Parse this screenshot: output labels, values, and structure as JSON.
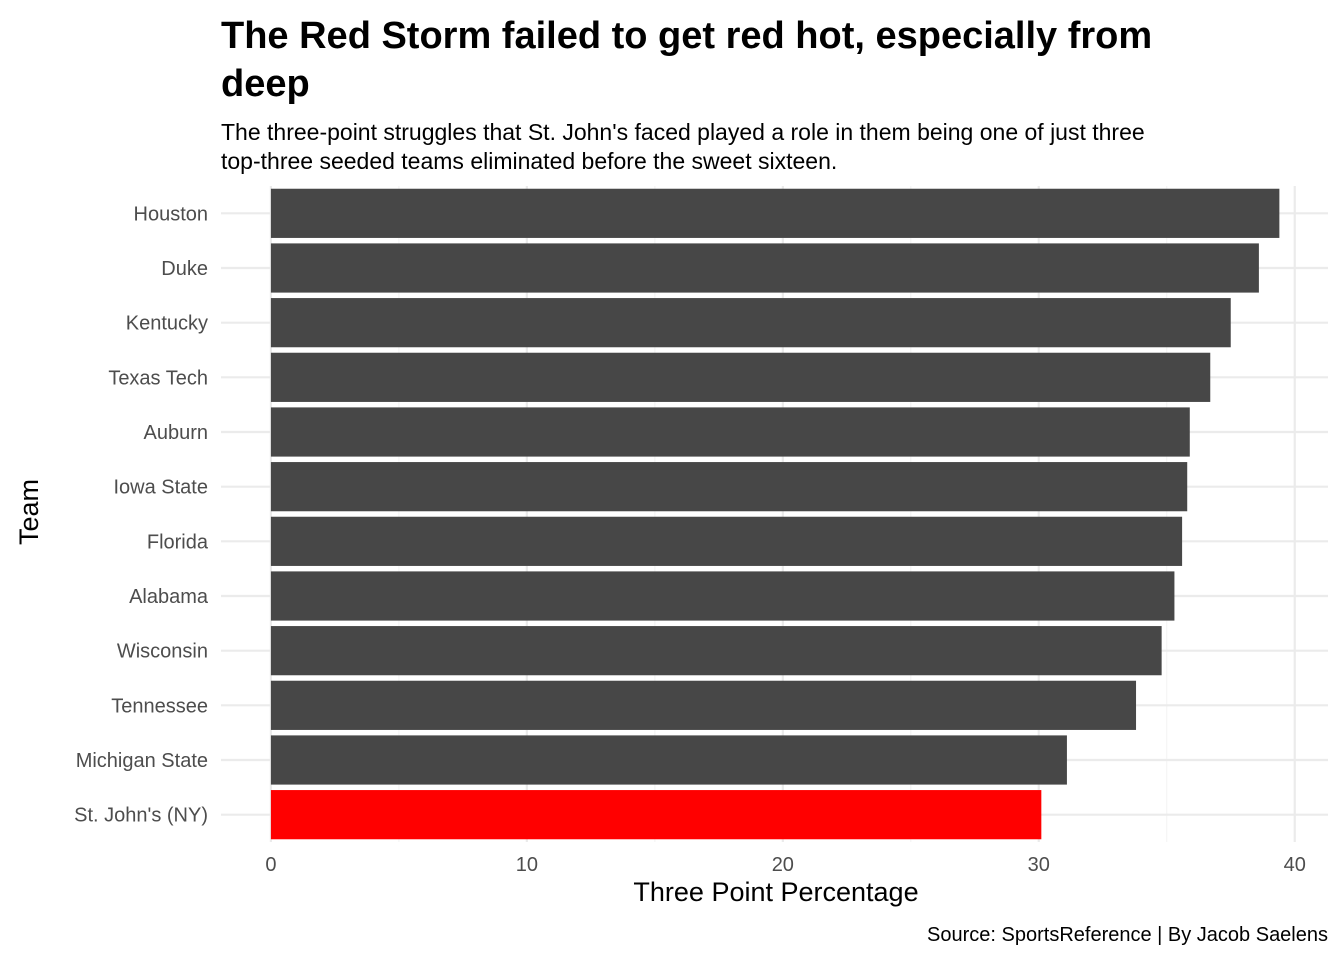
{
  "chart_data": {
    "type": "bar",
    "orientation": "horizontal",
    "title": "The Red Storm failed to get red hot, especially from deep",
    "title_lines": [
      "The Red Storm failed to get red hot, especially from",
      "deep"
    ],
    "subtitle_lines": [
      "The three-point struggles that St. John's faced played a role in them being one of just three",
      "top-three seeded teams eliminated before the sweet sixteen."
    ],
    "xlabel": "Three Point Percentage",
    "ylabel": "Team",
    "caption": "Source: SportsReference | By Jacob Saelens",
    "categories": [
      "Houston",
      "Duke",
      "Kentucky",
      "Texas Tech",
      "Auburn",
      "Iowa State",
      "Florida",
      "Alabama",
      "Wisconsin",
      "Tennessee",
      "Michigan State",
      "St. John's (NY)"
    ],
    "values": [
      39.4,
      38.6,
      37.5,
      36.7,
      35.9,
      35.8,
      35.6,
      35.3,
      34.8,
      33.8,
      31.1,
      30.1
    ],
    "x_ticks": [
      0,
      10,
      20,
      30,
      40
    ],
    "xlim": [
      -1.95,
      41.3
    ],
    "grid": true,
    "highlight_category": "St. John's (NY)",
    "colors": {
      "bar": "#474747",
      "highlight": "#ff0000"
    }
  }
}
